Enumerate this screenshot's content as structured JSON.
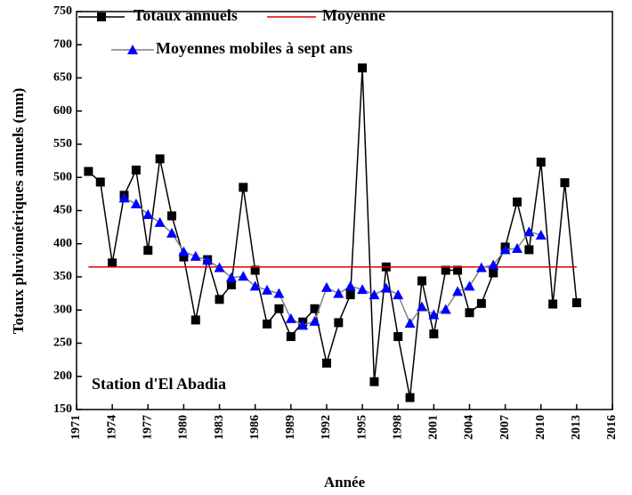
{
  "chart_data": {
    "type": "line",
    "x_label": "Année",
    "y_label": "Totaux pluviométriques annuels (mm)",
    "annotation": "Station d'El Abadia",
    "xlim": [
      1971,
      2016
    ],
    "xticks": [
      1971,
      1974,
      1977,
      1980,
      1983,
      1986,
      1989,
      1992,
      1995,
      1998,
      2001,
      2004,
      2007,
      2010,
      2013,
      2016
    ],
    "ylim": [
      150,
      750
    ],
    "yticks": [
      150,
      200,
      250,
      300,
      350,
      400,
      450,
      500,
      550,
      600,
      650,
      700,
      750
    ],
    "legend": "top-left",
    "series": [
      {
        "name": "Totaux annuels",
        "color": "#000000",
        "marker": "square",
        "x": [
          1972,
          1973,
          1974,
          1975,
          1976,
          1977,
          1978,
          1979,
          1980,
          1981,
          1982,
          1983,
          1984,
          1985,
          1986,
          1987,
          1988,
          1989,
          1990,
          1991,
          1992,
          1993,
          1994,
          1995,
          1996,
          1997,
          1998,
          1999,
          2000,
          2001,
          2002,
          2003,
          2004,
          2005,
          2006,
          2007,
          2008,
          2009,
          2010,
          2011,
          2012,
          2013
        ],
        "values": [
          509,
          493,
          371,
          473,
          511,
          390,
          528,
          442,
          380,
          285,
          376,
          316,
          338,
          485,
          360,
          279,
          302,
          260,
          282,
          302,
          220,
          281,
          323,
          665,
          192,
          365,
          260,
          168,
          344,
          264,
          360,
          360,
          296,
          310,
          356,
          395,
          463,
          391,
          523,
          309,
          492,
          311
        ]
      },
      {
        "name": "Moyenne",
        "color": "#e00000",
        "marker": "none",
        "x": [
          1972,
          2013
        ],
        "values": [
          365,
          365
        ]
      },
      {
        "name": "Moyennes mobiles à sept ans",
        "color": "#808080",
        "marker": "triangle",
        "marker_color": "#0000ff",
        "x": [
          1975,
          1976,
          1977,
          1978,
          1979,
          1980,
          1981,
          1982,
          1983,
          1984,
          1985,
          1986,
          1987,
          1988,
          1989,
          1990,
          1991,
          1992,
          1993,
          1994,
          1995,
          1996,
          1997,
          1998,
          1999,
          2000,
          2001,
          2002,
          2003,
          2004,
          2005,
          2006,
          2007,
          2008,
          2009,
          2010
        ],
        "values": [
          469,
          460,
          444,
          432,
          416,
          388,
          381,
          375,
          364,
          349,
          351,
          336,
          330,
          325,
          287,
          277,
          283,
          334,
          325,
          336,
          331,
          323,
          333,
          323,
          280,
          305,
          293,
          301,
          328,
          336,
          364,
          368,
          391,
          393,
          418,
          413
        ]
      }
    ]
  }
}
